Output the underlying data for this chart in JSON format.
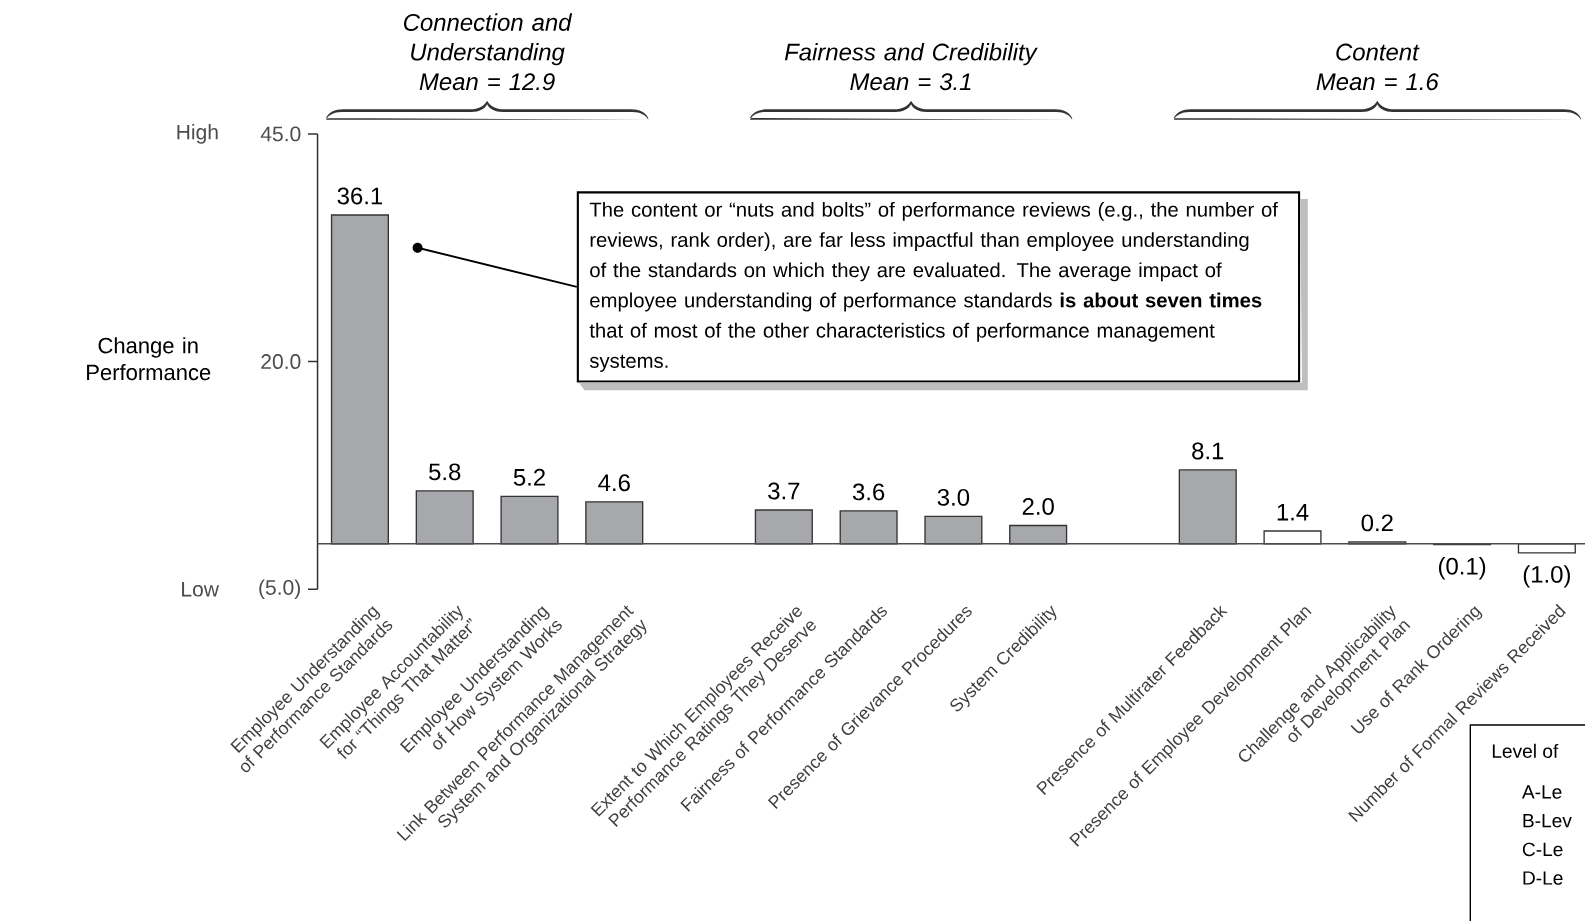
{
  "chart_data": {
    "type": "bar",
    "ylabel": "Change in Performance",
    "categories": [
      "Employee Understanding of Performance Standards",
      "Employee Accountability for “Things That Matter”",
      "Employee Understanding of How System Works",
      "Link Between Performance Management System and Organizational Strategy",
      null,
      "Extent to Which Employees Receive Performance Ratings They Deserve",
      "Fairness of Performance Standards",
      "Presence of Grievance Procedures",
      "System Credibility",
      null,
      "Presence of Multirater Feedback",
      "Presence of Employee Development Plan",
      "Challenge and Applicability of Development Plan",
      "Use of Rank Ordering",
      "Number of Formal Reviews Received"
    ],
    "values": [
      36.1,
      5.8,
      5.2,
      4.6,
      null,
      3.7,
      3.6,
      3.0,
      2.0,
      null,
      8.1,
      1.4,
      0.2,
      -0.1,
      -1.0
    ],
    "colors": [
      "#a7a8ab",
      "#a7a8ab",
      "#a7a8ab",
      "#a7a8ab",
      null,
      "#a7a8ab",
      "#a7a8ab",
      "#a7a8ab",
      "#a7a8ab",
      null,
      "#a7a8ab",
      "#ffffff",
      "#a7a8ab",
      "#a7a8ab",
      "#ffffff"
    ],
    "value_labels": [
      "36.1",
      "5.8",
      "5.2",
      "4.6",
      null,
      "3.7",
      "3.6",
      "3.0",
      "2.0",
      null,
      "8.1",
      "1.4",
      "0.2",
      "(0.1)",
      "(1.0)"
    ],
    "ylim": [
      -5,
      45
    ],
    "yticks": [
      {
        "value": 45,
        "label": "45.0"
      },
      {
        "value": 20,
        "label": "20.0"
      },
      {
        "value": -5,
        "label": "(5.0)"
      }
    ],
    "annotations": [
      "*Connection and Understanding*",
      "*Mean = 12.9*",
      "*Fairness and Credibility*",
      "*Mean = 3.1*",
      "*Content*",
      "*Mean = 1.6*",
      "The content or “nuts and bolts” of performance reviews (e.g., the number of reviews, rank order), are far less impactful than employee understanding of the standards on which they are evaluated. The average impact of employee understanding of performance standards **is about seven times** that of most of the other characteristics of performance management systems.",
      "High",
      "Low",
      "Level of",
      "A-Le",
      "B-Lev",
      "C-Le",
      "D-Le"
    ]
  }
}
